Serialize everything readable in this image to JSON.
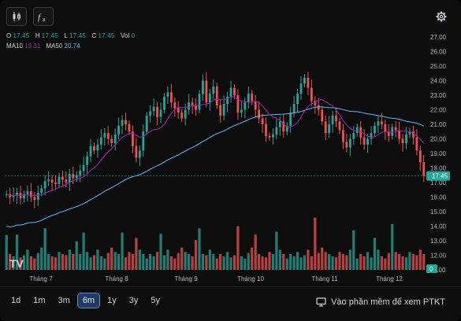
{
  "ohlc": {
    "o_label": "O",
    "o": "17.45",
    "h_label": "H",
    "h": "17.45",
    "l_label": "L",
    "l": "17.45",
    "c_label": "C",
    "c": "17.45",
    "vol_label": "Vol",
    "vol": "0"
  },
  "ma": {
    "ma10_label": "MA10",
    "ma10": "19.31",
    "ma50_label": "MA50",
    "ma50": "20.74"
  },
  "price_axis": [
    "27.00",
    "26.00",
    "25.00",
    "24.00",
    "23.00",
    "22.00",
    "21.00",
    "20.00",
    "19.00",
    "18.00",
    "17.00",
    "16.00",
    "15.00",
    "14.00",
    "13.00",
    "12.00",
    "11.00"
  ],
  "last_price": "17.45",
  "last_volume": "0",
  "month_labels": [
    "Tháng 7",
    "Tháng 8",
    "Tháng 9",
    "Tháng 10",
    "Tháng 11",
    "Tháng 12"
  ],
  "timeframes": [
    "1d",
    "1m",
    "3m",
    "6m",
    "1y",
    "3y",
    "5y"
  ],
  "active_timeframe": "6m",
  "footer_link": "Vào phần mềm để xem PTKT",
  "colors": {
    "up": "#26a69a",
    "down": "#ef5350",
    "ma10": "#9c27b0",
    "ma50": "#64b5f6",
    "last": "#26a69a"
  },
  "chart_data": {
    "type": "candlestick",
    "y_range": [
      11,
      27
    ],
    "x_labels": [
      "Tháng 7",
      "Tháng 8",
      "Tháng 9",
      "Tháng 10",
      "Tháng 11",
      "Tháng 12"
    ],
    "close_series": [
      16.2,
      16.0,
      16.1,
      16.3,
      15.9,
      16.2,
      16.4,
      16.0,
      15.8,
      16.3,
      16.6,
      17.1,
      17.2,
      17.0,
      16.9,
      17.4,
      17.2,
      17.0,
      17.6,
      17.3,
      17.5,
      17.8,
      18.2,
      18.8,
      19.5,
      19.2,
      19.6,
      20.1,
      20.4,
      20.0,
      19.7,
      20.3,
      20.9,
      21.3,
      21.0,
      20.5,
      19.5,
      18.7,
      19.2,
      20.5,
      21.6,
      21.9,
      22.2,
      21.5,
      22.0,
      22.9,
      23.2,
      22.5,
      22.1,
      21.8,
      21.4,
      22.0,
      22.5,
      22.3,
      22.0,
      23.1,
      24.0,
      22.5,
      23.1,
      23.6,
      22.3,
      21.6,
      22.4,
      22.9,
      23.5,
      23.0,
      21.8,
      22.0,
      22.5,
      23.1,
      22.6,
      22.0,
      21.4,
      21.0,
      20.2,
      20.1,
      20.3,
      20.8,
      21.2,
      20.5,
      20.9,
      21.8,
      22.4,
      23.1,
      23.8,
      24.2,
      23.5,
      22.6,
      22.3,
      22.0,
      21.2,
      20.4,
      21.0,
      21.6,
      21.2,
      20.6,
      19.8,
      19.4,
      20.0,
      20.4,
      20.8,
      20.1,
      19.6,
      20.0,
      20.4,
      20.9,
      21.2,
      21.0,
      20.5,
      20.2,
      20.8,
      20.6,
      20.0,
      19.7,
      20.3,
      20.5,
      20.1,
      19.2,
      18.4,
      17.45
    ]
  }
}
